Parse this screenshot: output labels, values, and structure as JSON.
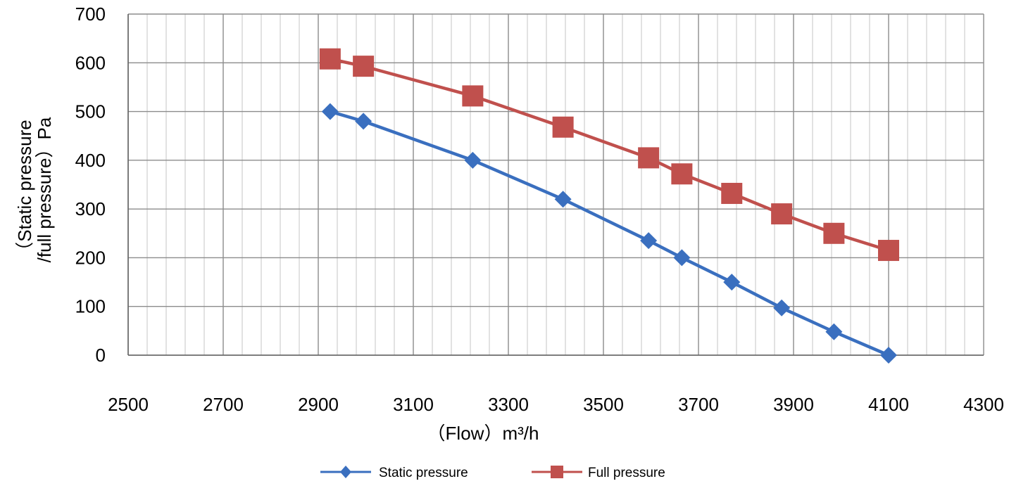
{
  "chart_data": {
    "type": "line",
    "xlabel": "（Flow）m³/h",
    "ylabel_line1": "（Static pressure",
    "ylabel_line2": "/full pressure）Pa",
    "xlim": [
      2500,
      4300
    ],
    "ylim": [
      0,
      700
    ],
    "x_ticks": [
      "2500",
      "2700",
      "2900",
      "3100",
      "3300",
      "3500",
      "3700",
      "3900",
      "4100",
      "4300"
    ],
    "y_ticks": [
      "0",
      "100",
      "200",
      "300",
      "400",
      "500",
      "600",
      "700"
    ],
    "grid": true,
    "legend_position": "bottom",
    "series": [
      {
        "name": "Static pressure",
        "marker": "diamond",
        "color": "#3a6fbf",
        "x": [
          2925,
          2995,
          3225,
          3415,
          3595,
          3665,
          3770,
          3875,
          3985,
          4100
        ],
        "y": [
          500,
          480,
          400,
          320,
          235,
          200,
          150,
          97,
          48,
          0
        ]
      },
      {
        "name": "Full pressure",
        "marker": "square",
        "color": "#c0504d",
        "x": [
          2925,
          2995,
          3225,
          3415,
          3595,
          3665,
          3770,
          3875,
          3985,
          4100
        ],
        "y": [
          608,
          593,
          532,
          468,
          405,
          372,
          332,
          290,
          250,
          215
        ]
      }
    ]
  }
}
